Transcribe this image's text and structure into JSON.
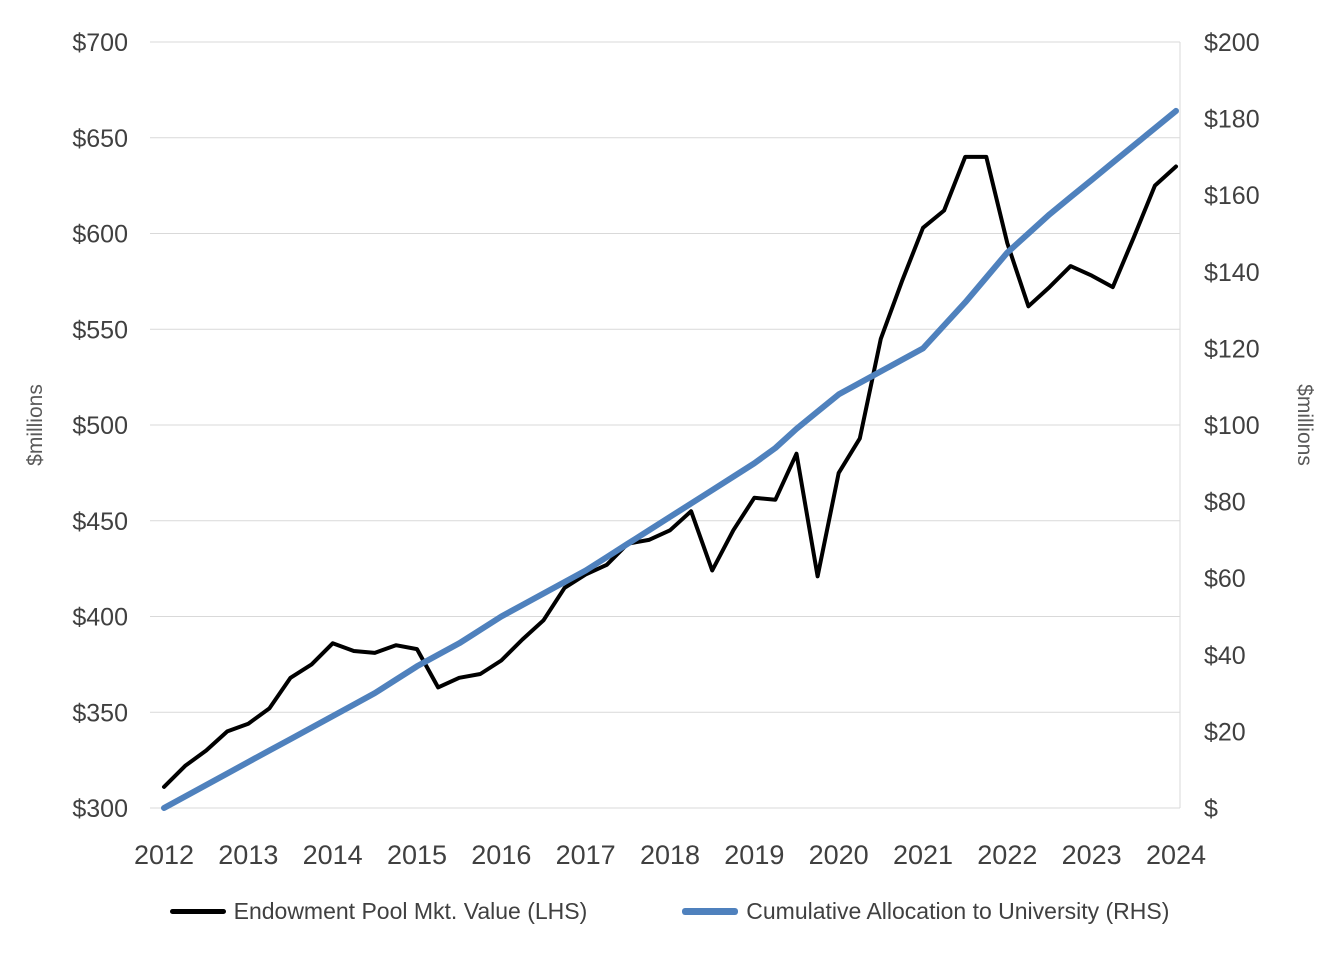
{
  "chart_data": {
    "type": "line",
    "grid": "horizontal",
    "grid_color": "#d9d9d9",
    "legend_position": "bottom",
    "x": [
      2012,
      2012.25,
      2012.5,
      2012.75,
      2013,
      2013.25,
      2013.5,
      2013.75,
      2014,
      2014.25,
      2014.5,
      2014.75,
      2015,
      2015.25,
      2015.5,
      2015.75,
      2016,
      2016.25,
      2016.5,
      2016.75,
      2017,
      2017.25,
      2017.5,
      2017.75,
      2018,
      2018.25,
      2018.5,
      2018.75,
      2019,
      2019.25,
      2019.5,
      2019.75,
      2020,
      2020.25,
      2020.5,
      2020.75,
      2021,
      2021.25,
      2021.5,
      2021.75,
      2022,
      2022.25,
      2022.5,
      2022.75,
      2023,
      2023.25,
      2023.5,
      2023.75,
      2024
    ],
    "series": [
      {
        "name": "Endowment Pool Mkt. Value (LHS)",
        "data_name": "endowment-line",
        "axis": "left",
        "color": "#000000",
        "width": 4,
        "values": [
          311,
          322,
          330,
          340,
          344,
          352,
          368,
          375,
          386,
          382,
          381,
          385,
          383,
          363,
          368,
          370,
          377,
          388,
          398,
          415,
          422,
          427,
          438,
          440,
          445,
          455,
          424,
          445,
          462,
          461,
          485,
          421,
          475,
          493,
          545,
          575,
          603,
          612,
          640,
          640,
          595,
          562,
          572,
          583,
          578,
          572,
          598,
          625,
          635
        ]
      },
      {
        "name": "Cumulative Allocation to University (RHS)",
        "data_name": "allocation-line",
        "axis": "right",
        "color": "#4f81bd",
        "width": 6,
        "values": [
          0,
          3,
          6,
          9,
          12,
          15,
          18,
          21,
          24,
          27,
          30,
          33.5,
          37,
          40,
          43,
          46.5,
          50,
          53,
          56,
          59,
          62,
          65.5,
          69,
          72.5,
          76,
          79.5,
          83,
          86.5,
          90,
          94,
          99,
          103.5,
          108,
          111,
          114,
          117,
          120,
          126,
          132,
          138.5,
          145,
          150,
          155,
          159.5,
          164,
          168.5,
          173,
          177.5,
          182
        ]
      }
    ],
    "left_axis": {
      "title": "$millions",
      "min": 300,
      "max": 700,
      "tick_step": 50,
      "tick_labels": [
        "$300",
        "$350",
        "$400",
        "$450",
        "$500",
        "$550",
        "$600",
        "$650",
        "$700"
      ]
    },
    "right_axis": {
      "title": "$millions",
      "min": 0,
      "max": 200,
      "tick_step": 20,
      "tick_labels": [
        "$",
        "$20",
        "$40",
        "$60",
        "$80",
        "$100",
        "$120",
        "$140",
        "$160",
        "$180",
        "$200"
      ]
    },
    "x_axis": {
      "tick_labels": [
        "2012",
        "2013",
        "2014",
        "2015",
        "2016",
        "2017",
        "2018",
        "2019",
        "2020",
        "2021",
        "2022",
        "2023",
        "2024"
      ]
    }
  },
  "legend": {
    "items": [
      {
        "label": "Endowment Pool Mkt. Value (LHS)",
        "color": "#000000"
      },
      {
        "label": "Cumulative Allocation to University (RHS)",
        "color": "#4f81bd"
      }
    ]
  }
}
